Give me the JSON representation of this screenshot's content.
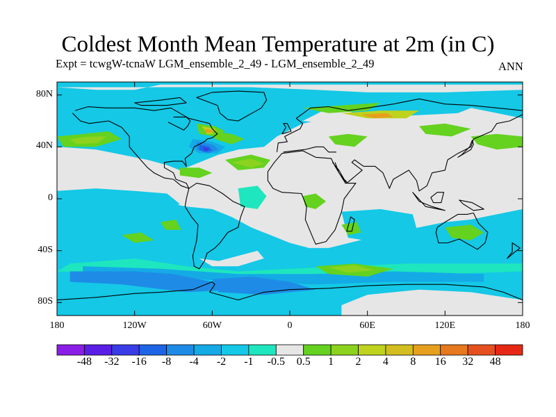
{
  "title": "Coldest Month Mean Temperature at 2m (in C)",
  "subtitle": "Expt = tcwgW-tcnaW  LGM_ensemble_2_49 - LGM_ensemble_2_49",
  "season": "ANN",
  "lat_labels": [
    "80N",
    "40N",
    "0",
    "40S",
    "80S"
  ],
  "lon_labels": [
    "180",
    "120W",
    "60W",
    "0",
    "60E",
    "120E",
    "180"
  ],
  "colorbar": {
    "labels": [
      "-48",
      "-32",
      "-16",
      "-8",
      "-4",
      "-2",
      "-1",
      "-0.5",
      "0.5",
      "1",
      "2",
      "4",
      "8",
      "16",
      "32",
      "48"
    ],
    "colors": [
      "#8a1ee6",
      "#5a1ee6",
      "#3a3ce6",
      "#1e64e6",
      "#1e8ce6",
      "#14aae6",
      "#14c8e6",
      "#1ee6be",
      "#e6e6e6",
      "#64d21e",
      "#8cd21e",
      "#bed21e",
      "#d2be1e",
      "#e6a01e",
      "#e6781e",
      "#e6501e",
      "#e62814"
    ]
  },
  "palette": {
    "neutral": "#e6e6e6",
    "cyan": "#14c8e6",
    "mint": "#1ee6be",
    "lightblue": "#14aae6",
    "blue": "#1e8ce6",
    "deepblue": "#1e64e6",
    "navy": "#3a3ce6",
    "green": "#64d21e",
    "yellowgreen": "#8cd21e",
    "olive": "#bed21e",
    "orange": "#e6a01e",
    "coast": "#000000"
  }
}
